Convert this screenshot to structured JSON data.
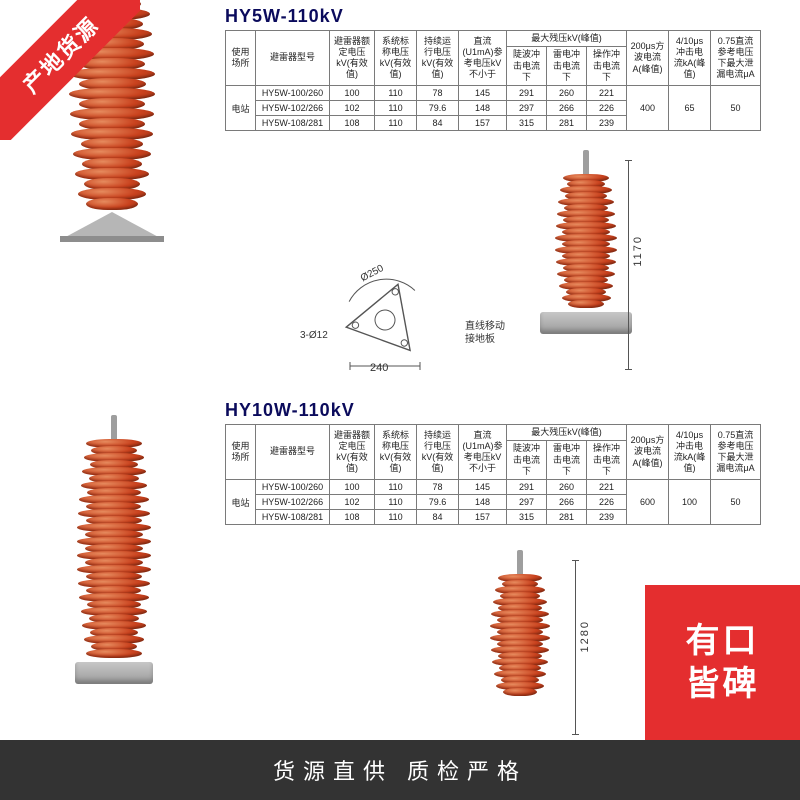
{
  "ribbon_tl": "产地货源",
  "badge_br_l1": "有口",
  "badge_br_l2": "皆碑",
  "footer_text": "货源直供  质检严格",
  "section1": {
    "title": "HY5W-110kV",
    "dim_height": "1170",
    "dim_base_w": "240",
    "dim_plate_d": "Ø250",
    "dim_hole": "3-Ø12",
    "note_line1": "直线移动",
    "note_line2": "接地板",
    "table": {
      "headers": {
        "loc": "使用场所",
        "model": "避雷器型号",
        "rated": "避雷器额定电压kV(有效值)",
        "sys": "系统标称电压kV(有效值)",
        "cont": "持续运行电压kV(有效值)",
        "dc": "直流(U1mA)参考电压kV不小于",
        "resid": "最大残压kV(峰值)",
        "light": "陡波冲击电流下",
        "thunder": "雷电冲击电流下",
        "switch": "操作冲击电流下",
        "sq200": "200μs方波电流A(峰值)",
        "imp410": "4/10μs冲击电流kA(峰值)",
        "leak075": "0.75直流参考电压下最大泄漏电流μA"
      },
      "loc_value": "电站",
      "rows": [
        {
          "model": "HY5W-100/260",
          "rated": "100",
          "sys": "110",
          "cont": "78",
          "dc": "145",
          "light": "291",
          "thunder": "260",
          "switch": "221"
        },
        {
          "model": "HY5W-102/266",
          "rated": "102",
          "sys": "110",
          "cont": "79.6",
          "dc": "148",
          "light": "297",
          "thunder": "266",
          "switch": "226"
        },
        {
          "model": "HY5W-108/281",
          "rated": "108",
          "sys": "110",
          "cont": "84",
          "dc": "157",
          "light": "315",
          "thunder": "281",
          "switch": "239"
        }
      ],
      "sq200": "400",
      "imp410": "65",
      "leak075": "50"
    },
    "arrester": {
      "disc_count": 24,
      "disc_min_w": 42,
      "disc_max_w": 86,
      "color_light": "#e68b5e",
      "color_mid": "#c9421e",
      "color_dark": "#8f2c11"
    }
  },
  "section2": {
    "title": "HY10W-110kV",
    "dim_height": "1280",
    "table": {
      "headers": {
        "loc": "使用场所",
        "model": "避雷器型号",
        "rated": "避雷器额定电压kV(有效值)",
        "sys": "系统标称电压kV(有效值)",
        "cont": "持续运行电压kV(有效值)",
        "dc": "直流(U1mA)参考电压kV不小于",
        "resid": "最大残压kV(峰值)",
        "light": "陡波冲击电流下",
        "thunder": "雷电冲击电流下",
        "switch": "操作冲击电流下",
        "sq200": "200μs方波电流A(峰值)",
        "imp410": "4/10μs冲击电流kA(峰值)",
        "leak075": "0.75直流参考电压下最大泄漏电流μA"
      },
      "loc_value": "电站",
      "rows": [
        {
          "model": "HY5W-100/260",
          "rated": "100",
          "sys": "110",
          "cont": "78",
          "dc": "145",
          "light": "291",
          "thunder": "260",
          "switch": "221"
        },
        {
          "model": "HY5W-102/266",
          "rated": "102",
          "sys": "110",
          "cont": "79.6",
          "dc": "148",
          "light": "297",
          "thunder": "266",
          "switch": "226"
        },
        {
          "model": "HY5W-108/281",
          "rated": "108",
          "sys": "110",
          "cont": "84",
          "dc": "157",
          "light": "315",
          "thunder": "281",
          "switch": "239"
        }
      ],
      "sq200": "600",
      "imp410": "100",
      "leak075": "50"
    },
    "arrester": {
      "disc_count": 31,
      "disc_min_w": 34,
      "disc_max_w": 74,
      "color_light": "#e68b5e",
      "color_mid": "#c9421e",
      "color_dark": "#8f2c11"
    }
  },
  "colors": {
    "brand_red": "#e42e2f",
    "footer_bg": "#333333",
    "title_color": "#0b0b5c",
    "border": "#7a7a7a"
  }
}
